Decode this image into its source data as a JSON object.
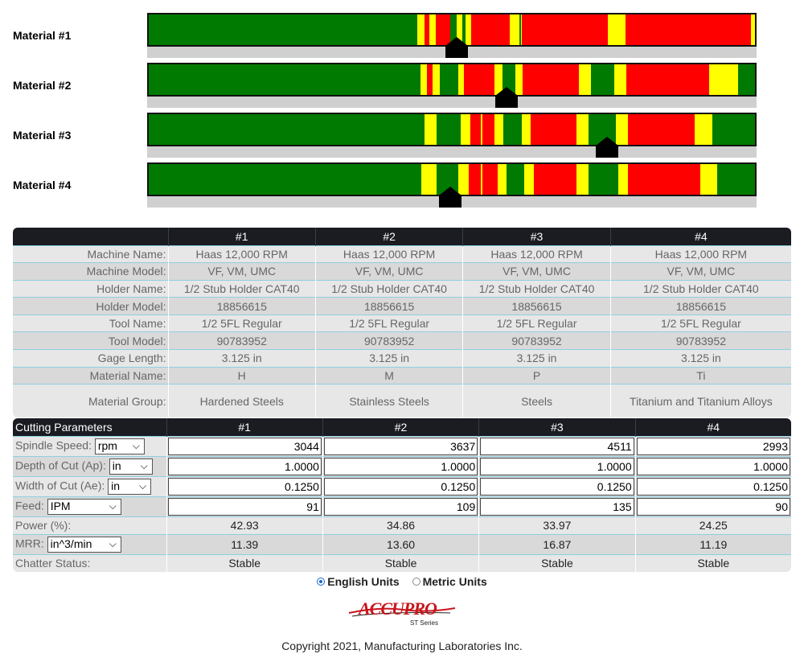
{
  "materials": [
    {
      "label": "Material #1",
      "marker_pct": 50.8,
      "segments": [
        [
          0,
          44.3,
          "g"
        ],
        [
          44.3,
          45.5,
          "y"
        ],
        [
          45.5,
          46.3,
          "r"
        ],
        [
          46.3,
          47.3,
          "y"
        ],
        [
          47.3,
          49.7,
          "r"
        ],
        [
          49.7,
          50.8,
          "g"
        ],
        [
          50.8,
          51.7,
          "y"
        ],
        [
          51.7,
          52.3,
          "g"
        ],
        [
          52.3,
          53.2,
          "y"
        ],
        [
          53.2,
          59.5,
          "r"
        ],
        [
          59.5,
          61.2,
          "y"
        ],
        [
          61.2,
          61.4,
          "g"
        ],
        [
          61.4,
          61.6,
          "y"
        ],
        [
          61.6,
          75.7,
          "r"
        ],
        [
          75.7,
          78.7,
          "y"
        ],
        [
          78.7,
          99.4,
          "r"
        ],
        [
          99.4,
          100,
          "y"
        ]
      ]
    },
    {
      "label": "Material #2",
      "marker_pct": 59.0,
      "segments": [
        [
          0,
          44.8,
          "g"
        ],
        [
          44.8,
          45.9,
          "y"
        ],
        [
          45.9,
          46.8,
          "r"
        ],
        [
          46.8,
          48.0,
          "y"
        ],
        [
          48.0,
          51.0,
          "g"
        ],
        [
          51.0,
          52.0,
          "y"
        ],
        [
          52.0,
          57.0,
          "r"
        ],
        [
          57.0,
          58.3,
          "y"
        ],
        [
          58.3,
          60.5,
          "g"
        ],
        [
          60.5,
          61.7,
          "y"
        ],
        [
          61.7,
          71.0,
          "r"
        ],
        [
          71.0,
          73.0,
          "y"
        ],
        [
          73.0,
          76.8,
          "g"
        ],
        [
          76.8,
          78.8,
          "y"
        ],
        [
          78.8,
          92.5,
          "r"
        ],
        [
          92.5,
          97.2,
          "y"
        ],
        [
          97.2,
          100,
          "g"
        ]
      ]
    },
    {
      "label": "Material #3",
      "marker_pct": 75.4,
      "segments": [
        [
          0,
          45.5,
          "g"
        ],
        [
          45.5,
          47.5,
          "y"
        ],
        [
          47.5,
          51.5,
          "g"
        ],
        [
          51.5,
          53.0,
          "y"
        ],
        [
          53.0,
          54.8,
          "r"
        ],
        [
          54.8,
          55.1,
          "y"
        ],
        [
          55.1,
          57.0,
          "r"
        ],
        [
          57.0,
          58.5,
          "y"
        ],
        [
          58.5,
          61.5,
          "g"
        ],
        [
          61.5,
          63.0,
          "y"
        ],
        [
          63.0,
          70.5,
          "r"
        ],
        [
          70.5,
          72.5,
          "y"
        ],
        [
          72.5,
          77.0,
          "g"
        ],
        [
          77.0,
          79.0,
          "y"
        ],
        [
          79.0,
          90.0,
          "r"
        ],
        [
          90.0,
          93.0,
          "y"
        ],
        [
          93.0,
          100,
          "g"
        ]
      ]
    },
    {
      "label": "Material #4",
      "marker_pct": 49.8,
      "segments": [
        [
          0,
          45.0,
          "g"
        ],
        [
          45.0,
          47.5,
          "y"
        ],
        [
          47.5,
          51.0,
          "g"
        ],
        [
          51.0,
          52.8,
          "y"
        ],
        [
          52.8,
          54.8,
          "r"
        ],
        [
          54.8,
          55.1,
          "y"
        ],
        [
          55.1,
          57.5,
          "r"
        ],
        [
          57.5,
          59.0,
          "y"
        ],
        [
          59.0,
          62.0,
          "g"
        ],
        [
          62.0,
          63.5,
          "y"
        ],
        [
          63.5,
          70.5,
          "r"
        ],
        [
          70.5,
          72.5,
          "y"
        ],
        [
          72.5,
          77.5,
          "g"
        ],
        [
          77.5,
          79.0,
          "y"
        ],
        [
          79.0,
          91.0,
          "r"
        ],
        [
          91.0,
          93.8,
          "y"
        ],
        [
          93.8,
          100,
          "g"
        ]
      ]
    }
  ],
  "seg_colors": {
    "g": "#007a00",
    "y": "#ffff00",
    "r": "#ff0000"
  },
  "info_table": {
    "headers": [
      "",
      "#1",
      "#2",
      "#3",
      "#4"
    ],
    "rows": [
      {
        "label": "Machine Name:",
        "values": [
          "Haas 12,000 RPM",
          "Haas 12,000 RPM",
          "Haas 12,000 RPM",
          "Haas 12,000 RPM"
        ]
      },
      {
        "label": "Machine Model:",
        "values": [
          "VF, VM, UMC",
          "VF, VM, UMC",
          "VF, VM, UMC",
          "VF, VM, UMC"
        ]
      },
      {
        "label": "Holder Name:",
        "values": [
          "1/2 Stub Holder CAT40",
          "1/2 Stub Holder CAT40",
          "1/2 Stub Holder CAT40",
          "1/2 Stub Holder CAT40"
        ]
      },
      {
        "label": "Holder Model:",
        "values": [
          "18856615",
          "18856615",
          "18856615",
          "18856615"
        ]
      },
      {
        "label": "Tool Name:",
        "values": [
          "1/2 5FL Regular",
          "1/2 5FL Regular",
          "1/2 5FL Regular",
          "1/2 5FL Regular"
        ]
      },
      {
        "label": "Tool Model:",
        "values": [
          "90783952",
          "90783952",
          "90783952",
          "90783952"
        ]
      },
      {
        "label": "Gage Length:",
        "values": [
          "3.125 in",
          "3.125 in",
          "3.125 in",
          "3.125 in"
        ]
      },
      {
        "label": "Material Name:",
        "values": [
          "H",
          "M",
          "P",
          "Ti"
        ]
      },
      {
        "label": "Material Group:",
        "values": [
          "Hardened Steels",
          "Stainless Steels",
          "Steels",
          "Titanium and Titanium Alloys"
        ]
      }
    ]
  },
  "cutting": {
    "title": "Cutting Parameters",
    "headers": [
      "#1",
      "#2",
      "#3",
      "#4"
    ],
    "spindle": {
      "label": "Spindle Speed:",
      "unit": "rpm",
      "values": [
        "3044",
        "3637",
        "4511",
        "2993"
      ]
    },
    "depth": {
      "label": "Depth of Cut (Ap):",
      "unit": "in",
      "values": [
        "1.0000",
        "1.0000",
        "1.0000",
        "1.0000"
      ]
    },
    "width": {
      "label": "Width of Cut (Ae):",
      "unit": "in",
      "values": [
        "0.1250",
        "0.1250",
        "0.1250",
        "0.1250"
      ]
    },
    "feed": {
      "label": "Feed:",
      "unit": "IPM",
      "values": [
        "91",
        "109",
        "135",
        "90"
      ]
    },
    "power": {
      "label": "Power (%):",
      "values": [
        "42.93",
        "34.86",
        "33.97",
        "24.25"
      ]
    },
    "mrr": {
      "label": "MRR:",
      "unit": "in^3/min",
      "values": [
        "11.39",
        "13.60",
        "16.87",
        "11.19"
      ]
    },
    "chatter": {
      "label": "Chatter Status:",
      "values": [
        "Stable",
        "Stable",
        "Stable",
        "Stable"
      ]
    }
  },
  "units": {
    "english": "English Units",
    "metric": "Metric Units",
    "selected": "english"
  },
  "logo": {
    "text": "ACCUPRO",
    "sub": "ST Series"
  },
  "copyright": "Copyright 2021, Manufacturing Laboratories Inc."
}
